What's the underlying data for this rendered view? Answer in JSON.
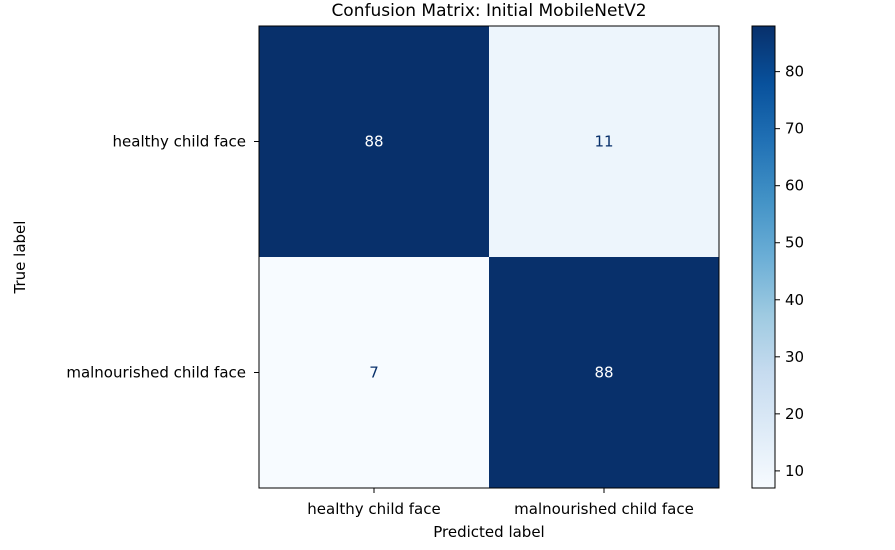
{
  "chart_data": {
    "type": "heatmap",
    "title": "Confusion Matrix: Initial MobileNetV2",
    "xlabel": "Predicted label",
    "ylabel": "True label",
    "x_categories": [
      "healthy child face",
      "malnourished child face"
    ],
    "y_categories": [
      "healthy child face",
      "malnourished child face"
    ],
    "matrix": [
      [
        88,
        11
      ],
      [
        7,
        88
      ]
    ],
    "colormap": "Blues",
    "colorbar": {
      "range": [
        7,
        88
      ],
      "ticks": [
        10,
        20,
        30,
        40,
        50,
        60,
        70,
        80
      ]
    },
    "cell_text_colors": {
      "dark_bg": "#ffffff",
      "light_bg": "#08306b"
    }
  }
}
